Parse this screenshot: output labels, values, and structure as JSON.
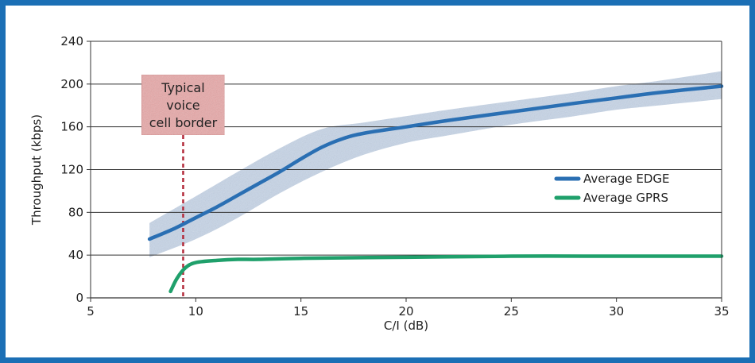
{
  "chart_data": {
    "type": "line",
    "xlabel": "C/I (dB)",
    "ylabel": "Throughput (kbps)",
    "xlim": [
      5,
      35
    ],
    "ylim": [
      0,
      240
    ],
    "xticks": [
      5,
      10,
      15,
      20,
      25,
      30,
      35
    ],
    "yticks": [
      0,
      40,
      80,
      120,
      160,
      200,
      240
    ],
    "grid": "horizontal",
    "legend_position": "right",
    "series": [
      {
        "name": "Average EDGE",
        "color": "#2a6fb3",
        "x": [
          7.8,
          9,
          10,
          11,
          12,
          13,
          14,
          15,
          16,
          17,
          18,
          20,
          22,
          25,
          28,
          30,
          32,
          35
        ],
        "y": [
          55,
          65,
          75,
          85,
          96,
          107,
          118,
          130,
          141,
          149,
          154,
          160,
          166,
          174,
          182,
          187,
          192,
          198
        ]
      },
      {
        "name": "Average GPRS",
        "color": "#1fa06b",
        "x": [
          8.8,
          9.1,
          9.5,
          10,
          11,
          12,
          13,
          15,
          20,
          25,
          30,
          35
        ],
        "y": [
          6,
          18,
          28,
          33,
          35,
          36,
          36,
          37,
          38,
          39,
          39,
          39
        ]
      }
    ],
    "band": {
      "color": "#bccde3",
      "x": [
        7.8,
        10,
        12,
        14,
        16,
        18,
        20,
        22,
        25,
        28,
        30,
        32,
        35
      ],
      "upper": [
        70,
        95,
        118,
        140,
        158,
        164,
        170,
        176,
        184,
        192,
        198,
        203,
        212
      ],
      "lower": [
        38,
        55,
        75,
        98,
        118,
        134,
        145,
        152,
        162,
        170,
        176,
        180,
        186
      ]
    },
    "annotations": [
      {
        "text_lines": [
          "Typical",
          "voice",
          "cell border"
        ],
        "x": 9.4,
        "color": "#e8a8a8",
        "line_color": "#b32a3a"
      }
    ]
  }
}
